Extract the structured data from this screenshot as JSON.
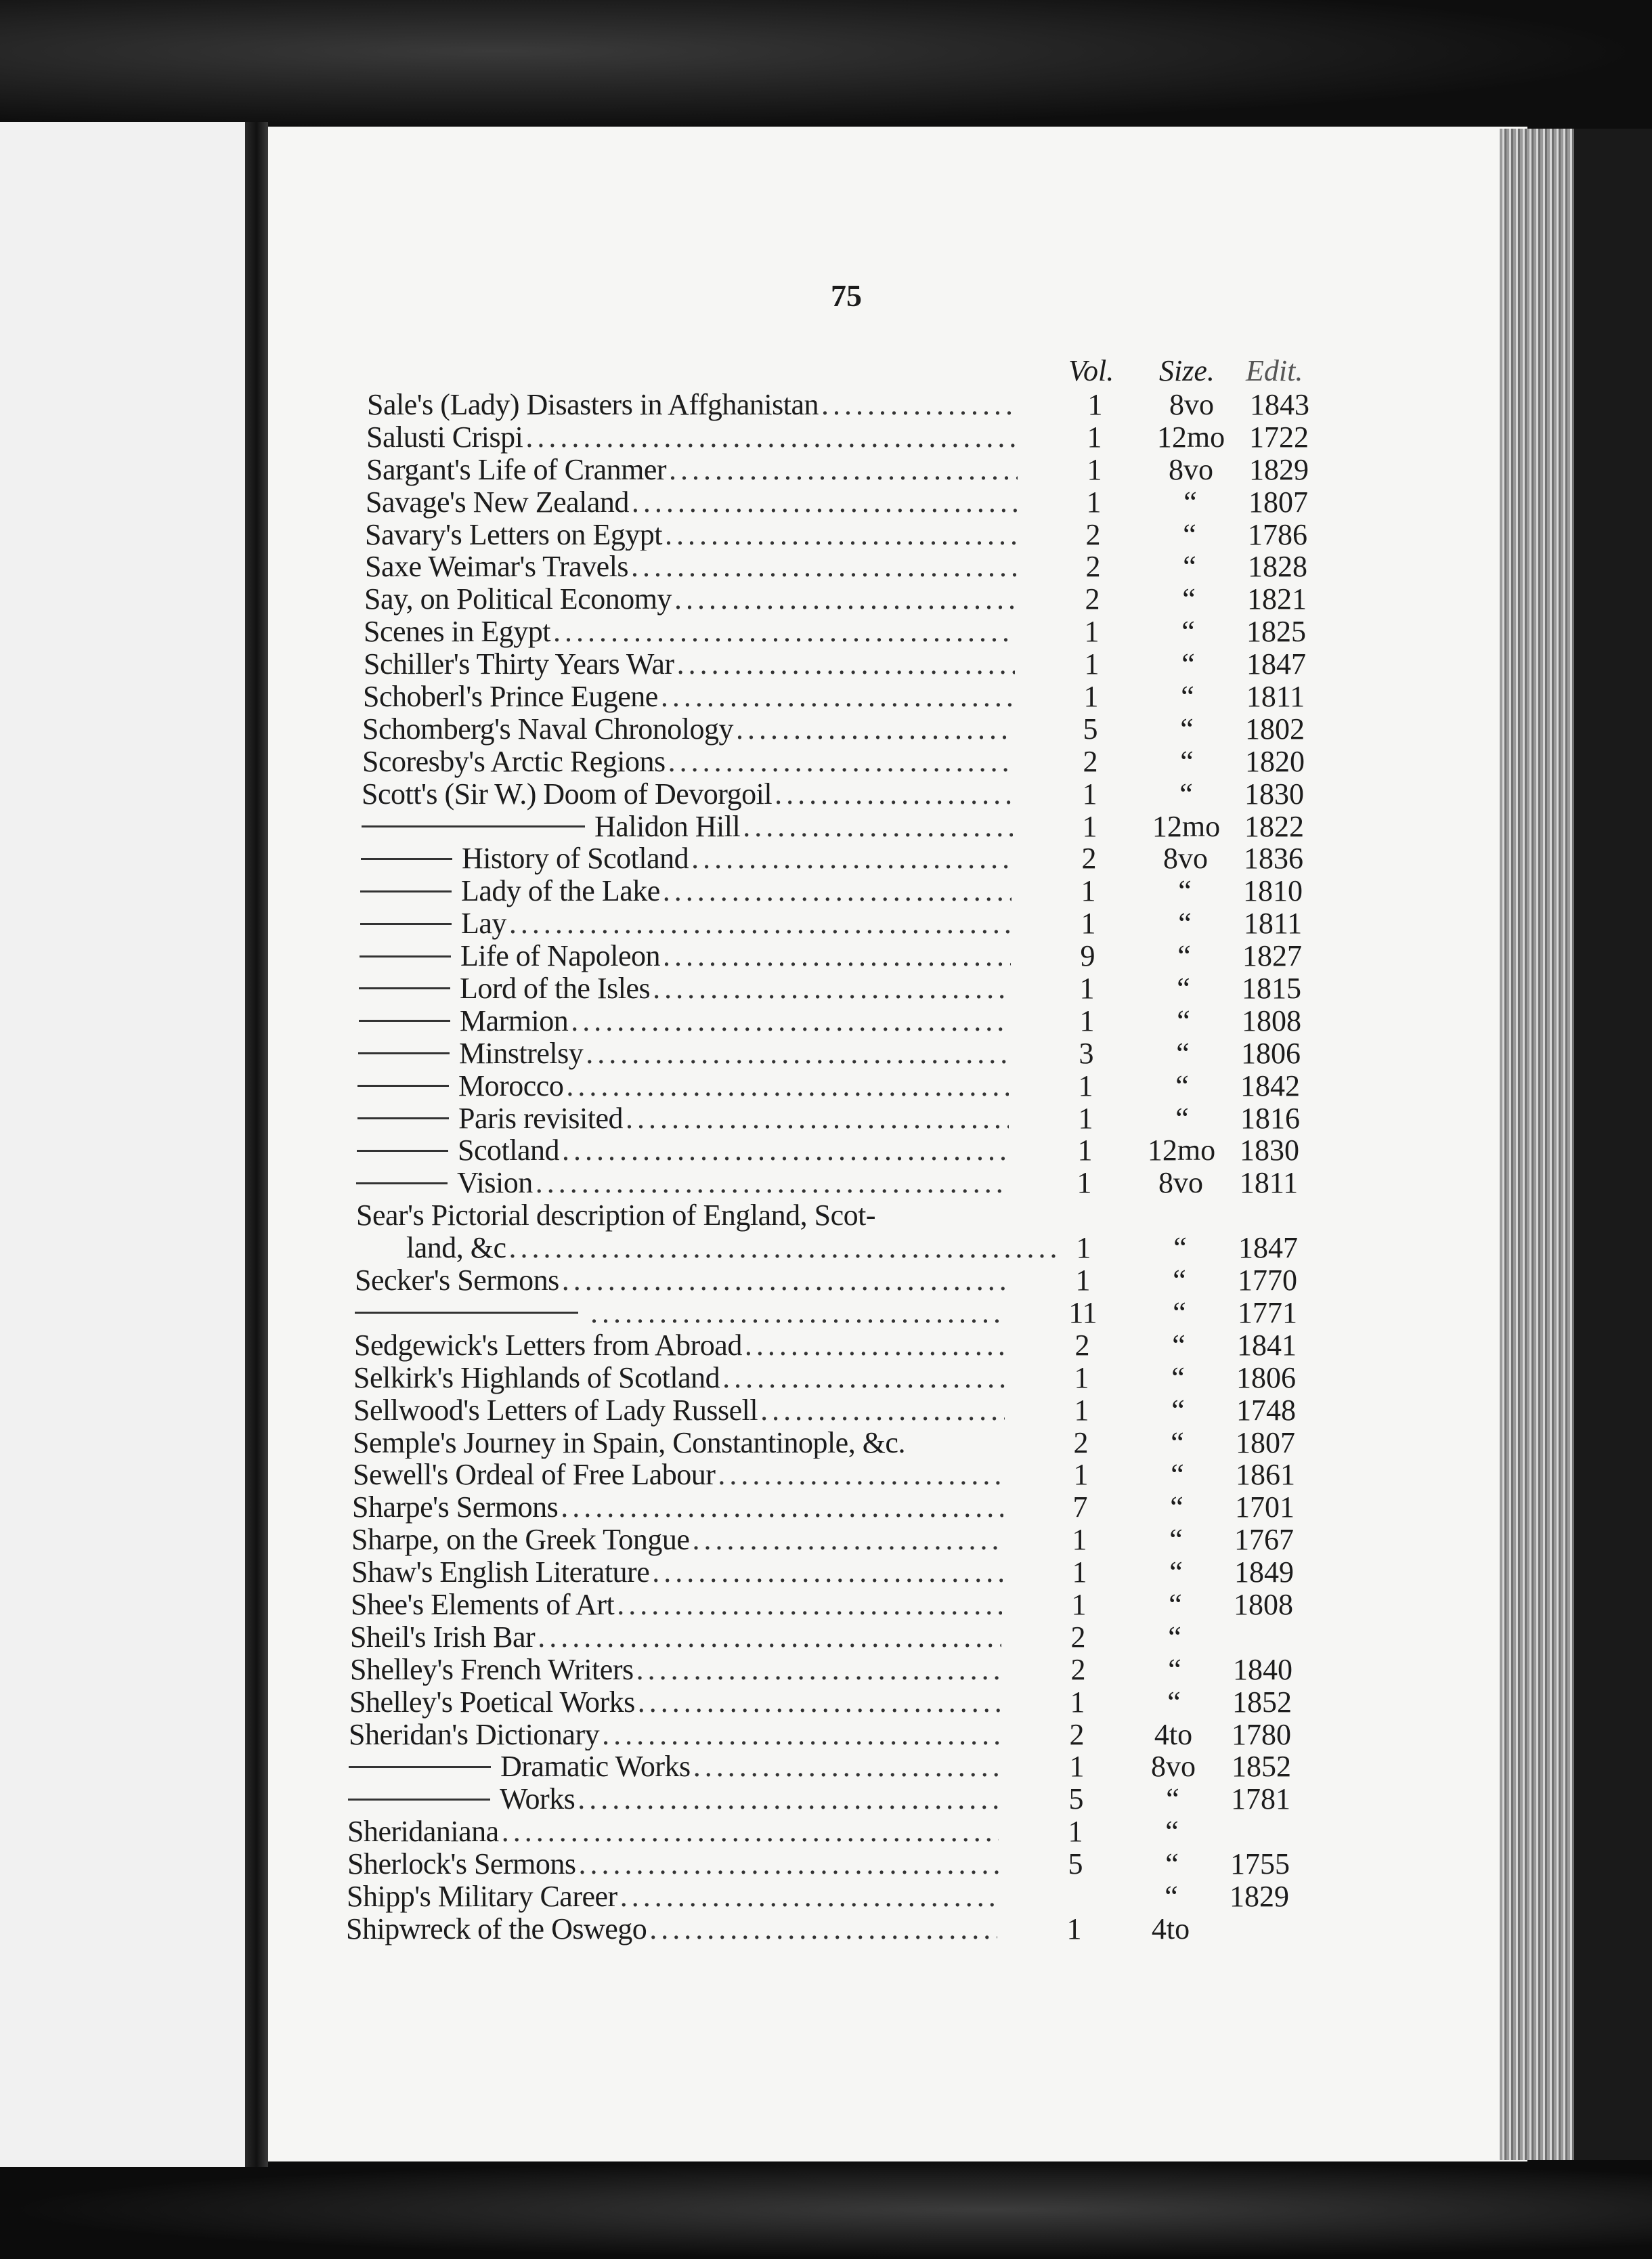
{
  "page_number": "75",
  "headers": {
    "vol": "Vol.",
    "size": "Size.",
    "edit": "Edit."
  },
  "rows": [
    {
      "title": "Sale's (Lady) Disasters in Affghanistan",
      "vol": "1",
      "size": "8vo",
      "edit": "1843"
    },
    {
      "title": "Salusti Crispi",
      "vol": "1",
      "size": "12mo",
      "edit": "1722"
    },
    {
      "title": "Sargant's Life of Cranmer",
      "vol": "1",
      "size": "8vo",
      "edit": "1829"
    },
    {
      "title": "Savage's New Zealand",
      "vol": "1",
      "size": "“",
      "edit": "1807"
    },
    {
      "title": "Savary's Letters on Egypt",
      "vol": "2",
      "size": "“",
      "edit": "1786"
    },
    {
      "title": "Saxe Weimar's Travels",
      "vol": "2",
      "size": "“",
      "edit": "1828"
    },
    {
      "title": "Say, on Political Economy",
      "vol": "2",
      "size": "“",
      "edit": "1821"
    },
    {
      "title": "Scenes in Egypt",
      "vol": "1",
      "size": "“",
      "edit": "1825"
    },
    {
      "title": "Schiller's Thirty Years War",
      "vol": "1",
      "size": "“",
      "edit": "1847"
    },
    {
      "title": "Schoberl's Prince Eugene",
      "vol": "1",
      "size": "“",
      "edit": "1811"
    },
    {
      "title": "Schomberg's Naval Chronology",
      "vol": "5",
      "size": "“",
      "edit": "1802"
    },
    {
      "title": "Scoresby's Arctic Regions",
      "vol": "2",
      "size": "“",
      "edit": "1820"
    },
    {
      "title": "Scott's (Sir W.) Doom of Devorgoil",
      "vol": "1",
      "size": "“",
      "edit": "1830"
    },
    {
      "repeat_mark": "long",
      "title": "Halidon Hill",
      "vol": "1",
      "size": "12mo",
      "edit": "1822"
    },
    {
      "repeat_mark": "short",
      "title": "History of Scotland",
      "vol": "2",
      "size": "8vo",
      "edit": "1836"
    },
    {
      "repeat_mark": "short",
      "title": "Lady of the Lake",
      "vol": "1",
      "size": "“",
      "edit": "1810"
    },
    {
      "repeat_mark": "short",
      "title": "Lay",
      "vol": "1",
      "size": "“",
      "edit": "1811"
    },
    {
      "repeat_mark": "short",
      "title": "Life of Napoleon",
      "vol": "9",
      "size": "“",
      "edit": "1827"
    },
    {
      "repeat_mark": "short",
      "title": "Lord of the Isles",
      "vol": "1",
      "size": "“",
      "edit": "1815"
    },
    {
      "repeat_mark": "short",
      "title": "Marmion",
      "vol": "1",
      "size": "“",
      "edit": "1808"
    },
    {
      "repeat_mark": "short",
      "title": "Minstrelsy",
      "vol": "3",
      "size": "“",
      "edit": "1806"
    },
    {
      "repeat_mark": "short",
      "title": "Morocco",
      "vol": "1",
      "size": "“",
      "edit": "1842"
    },
    {
      "repeat_mark": "short",
      "title": "Paris revisited",
      "vol": "1",
      "size": "“",
      "edit": "1816"
    },
    {
      "repeat_mark": "short",
      "title": "Scotland",
      "vol": "1",
      "size": "12mo",
      "edit": "1830"
    },
    {
      "repeat_mark": "short",
      "title": "Vision",
      "vol": "1",
      "size": "8vo",
      "edit": "1811"
    },
    {
      "title": "Sear's Pictorial description of England, Scot-",
      "no_leader": true,
      "vol": "",
      "size": "",
      "edit": ""
    },
    {
      "continuation": true,
      "title": "land, &c",
      "vol": "1",
      "size": "“",
      "edit": "1847"
    },
    {
      "title": "Secker's Sermons",
      "vol": "1",
      "size": "“",
      "edit": "1770"
    },
    {
      "repeat_mark": "long",
      "title": "",
      "vol": "11",
      "size": "“",
      "edit": "1771"
    },
    {
      "title": "Sedgewick's Letters from Abroad",
      "vol": "2",
      "size": "“",
      "edit": "1841"
    },
    {
      "title": "Selkirk's Highlands of Scotland",
      "vol": "1",
      "size": "“",
      "edit": "1806"
    },
    {
      "title": "Sellwood's Letters of Lady Russell",
      "vol": "1",
      "size": "“",
      "edit": "1748"
    },
    {
      "title": "Semple's Journey in Spain, Constantinople, &c.",
      "no_leader": true,
      "vol": "2",
      "size": "“",
      "edit": "1807"
    },
    {
      "title": "Sewell's Ordeal of Free Labour",
      "vol": "1",
      "size": "“",
      "edit": "1861"
    },
    {
      "title": "Sharpe's Sermons",
      "vol": "7",
      "size": "“",
      "edit": "1701"
    },
    {
      "title": "Sharpe, on the Greek Tongue",
      "vol": "1",
      "size": "“",
      "edit": "1767"
    },
    {
      "title": "Shaw's English Literature",
      "vol": "1",
      "size": "“",
      "edit": "1849"
    },
    {
      "title": "Shee's Elements of Art",
      "vol": "1",
      "size": "“",
      "edit": "1808"
    },
    {
      "title": "Sheil's Irish Bar",
      "vol": "2",
      "size": "“",
      "edit": ""
    },
    {
      "title": "Shelley's French Writers",
      "vol": "2",
      "size": "“",
      "edit": "1840"
    },
    {
      "title": "Shelley's Poetical Works",
      "vol": "1",
      "size": "“",
      "edit": "1852"
    },
    {
      "title": "Sheridan's Dictionary",
      "vol": "2",
      "size": "4to",
      "edit": "1780"
    },
    {
      "repeat_mark": "medium",
      "title": "Dramatic Works",
      "vol": "1",
      "size": "8vo",
      "edit": "1852"
    },
    {
      "repeat_mark": "medium",
      "title": "Works",
      "vol": "5",
      "size": "“",
      "edit": "1781"
    },
    {
      "title": "Sheridaniana",
      "vol": "1",
      "size": "“",
      "edit": ""
    },
    {
      "title": "Sherlock's Sermons",
      "vol": "5",
      "size": "“",
      "edit": "1755"
    },
    {
      "title": "Shipp's Military Career",
      "vol": "",
      "size": "“",
      "edit": "1829"
    },
    {
      "title": "Shipwreck of the Oswego",
      "vol": "1",
      "size": "4to",
      "edit": ""
    }
  ]
}
